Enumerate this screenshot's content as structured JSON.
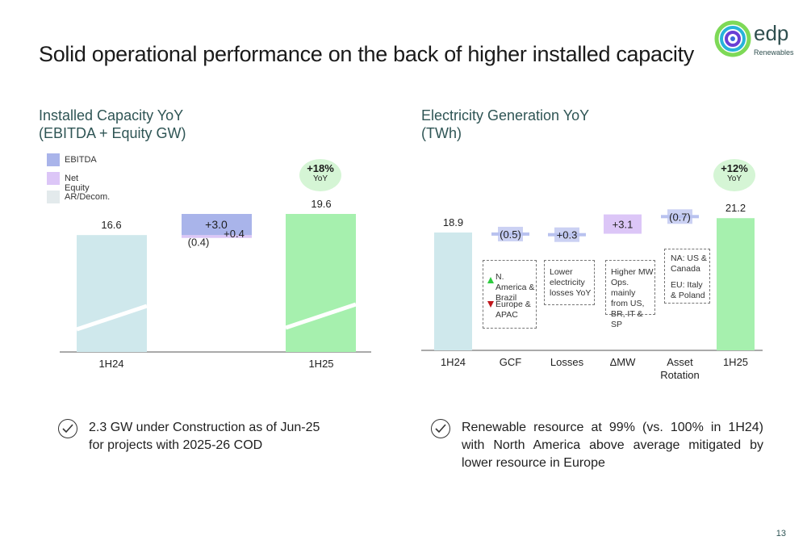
{
  "page": {
    "title": "Solid operational performance on the back of higher installed capacity",
    "page_number": "13",
    "logo": {
      "name": "edp",
      "sub": "Renewables"
    }
  },
  "left": {
    "title_line1": "Installed Capacity YoY",
    "title_line2": "(EBITDA + Equity GW)",
    "legend": [
      {
        "label": "EBITDA",
        "color": "#a9b4ea"
      },
      {
        "label": "Net Equity",
        "color": "#dcc6f7"
      },
      {
        "label": "AR/Decom.",
        "color": "#e3eaec"
      }
    ],
    "yoy": {
      "value": "+18%",
      "label": "YoY"
    },
    "footnote": "2.3 GW under Construction as of Jun-25 for projects with 2025-26 COD"
  },
  "right": {
    "title_line1": "Electricity Generation YoY",
    "title_line2": "(TWh)",
    "yoy": {
      "value": "+12%",
      "label": "YoY"
    },
    "notes": {
      "gcf_up": "N. America & Brazil",
      "gcf_down": "Europe & APAC",
      "losses": "Lower electricity losses YoY",
      "mw": "Higher MW Ops. mainly from US, BR, IT & SP",
      "asset_na": "NA: US & Canada",
      "asset_eu": "EU: Italy & Poland"
    },
    "footnote": "Renewable resource at 99% (vs. 100% in 1H24) with North America above average mitigated by lower resource in Europe"
  },
  "chart_data": [
    {
      "type": "bar",
      "subtype": "waterfall",
      "title": "Installed Capacity YoY (EBITDA + Equity GW)",
      "categories": [
        "1H24",
        "",
        "1H25"
      ],
      "ylim": [
        0,
        20
      ],
      "bars": [
        {
          "category": "1H24",
          "value": 16.6,
          "label": "16.6",
          "kind": "total",
          "color": "#cfe8ec"
        },
        {
          "category": "",
          "series": "AR/Decom.",
          "value": -0.4,
          "label": "(0.4)",
          "kind": "delta",
          "color": "#e3eaec"
        },
        {
          "category": "",
          "series": "Net Equity",
          "value": 0.4,
          "label": "+0.4",
          "kind": "delta",
          "color": "#dcc6f7"
        },
        {
          "category": "",
          "series": "EBITDA",
          "value": 3.0,
          "label": "+3.0",
          "kind": "delta",
          "color": "#a9b4ea"
        },
        {
          "category": "1H25",
          "value": 19.6,
          "label": "19.6",
          "kind": "total",
          "color": "#a6f0ae"
        }
      ]
    },
    {
      "type": "bar",
      "subtype": "waterfall",
      "title": "Electricity Generation YoY (TWh)",
      "categories": [
        "1H24",
        "GCF",
        "Losses",
        "ΔMW",
        "Asset Rotation",
        "1H25"
      ],
      "ylim": [
        0,
        23
      ],
      "values": [
        18.9,
        -0.5,
        0.3,
        3.1,
        -0.7,
        21.2
      ],
      "labels": [
        "18.9",
        "(0.5)",
        "+0.3",
        "+3.1",
        "(0.7)",
        "21.2"
      ],
      "kinds": [
        "total",
        "delta",
        "delta",
        "delta",
        "delta",
        "total"
      ]
    }
  ]
}
